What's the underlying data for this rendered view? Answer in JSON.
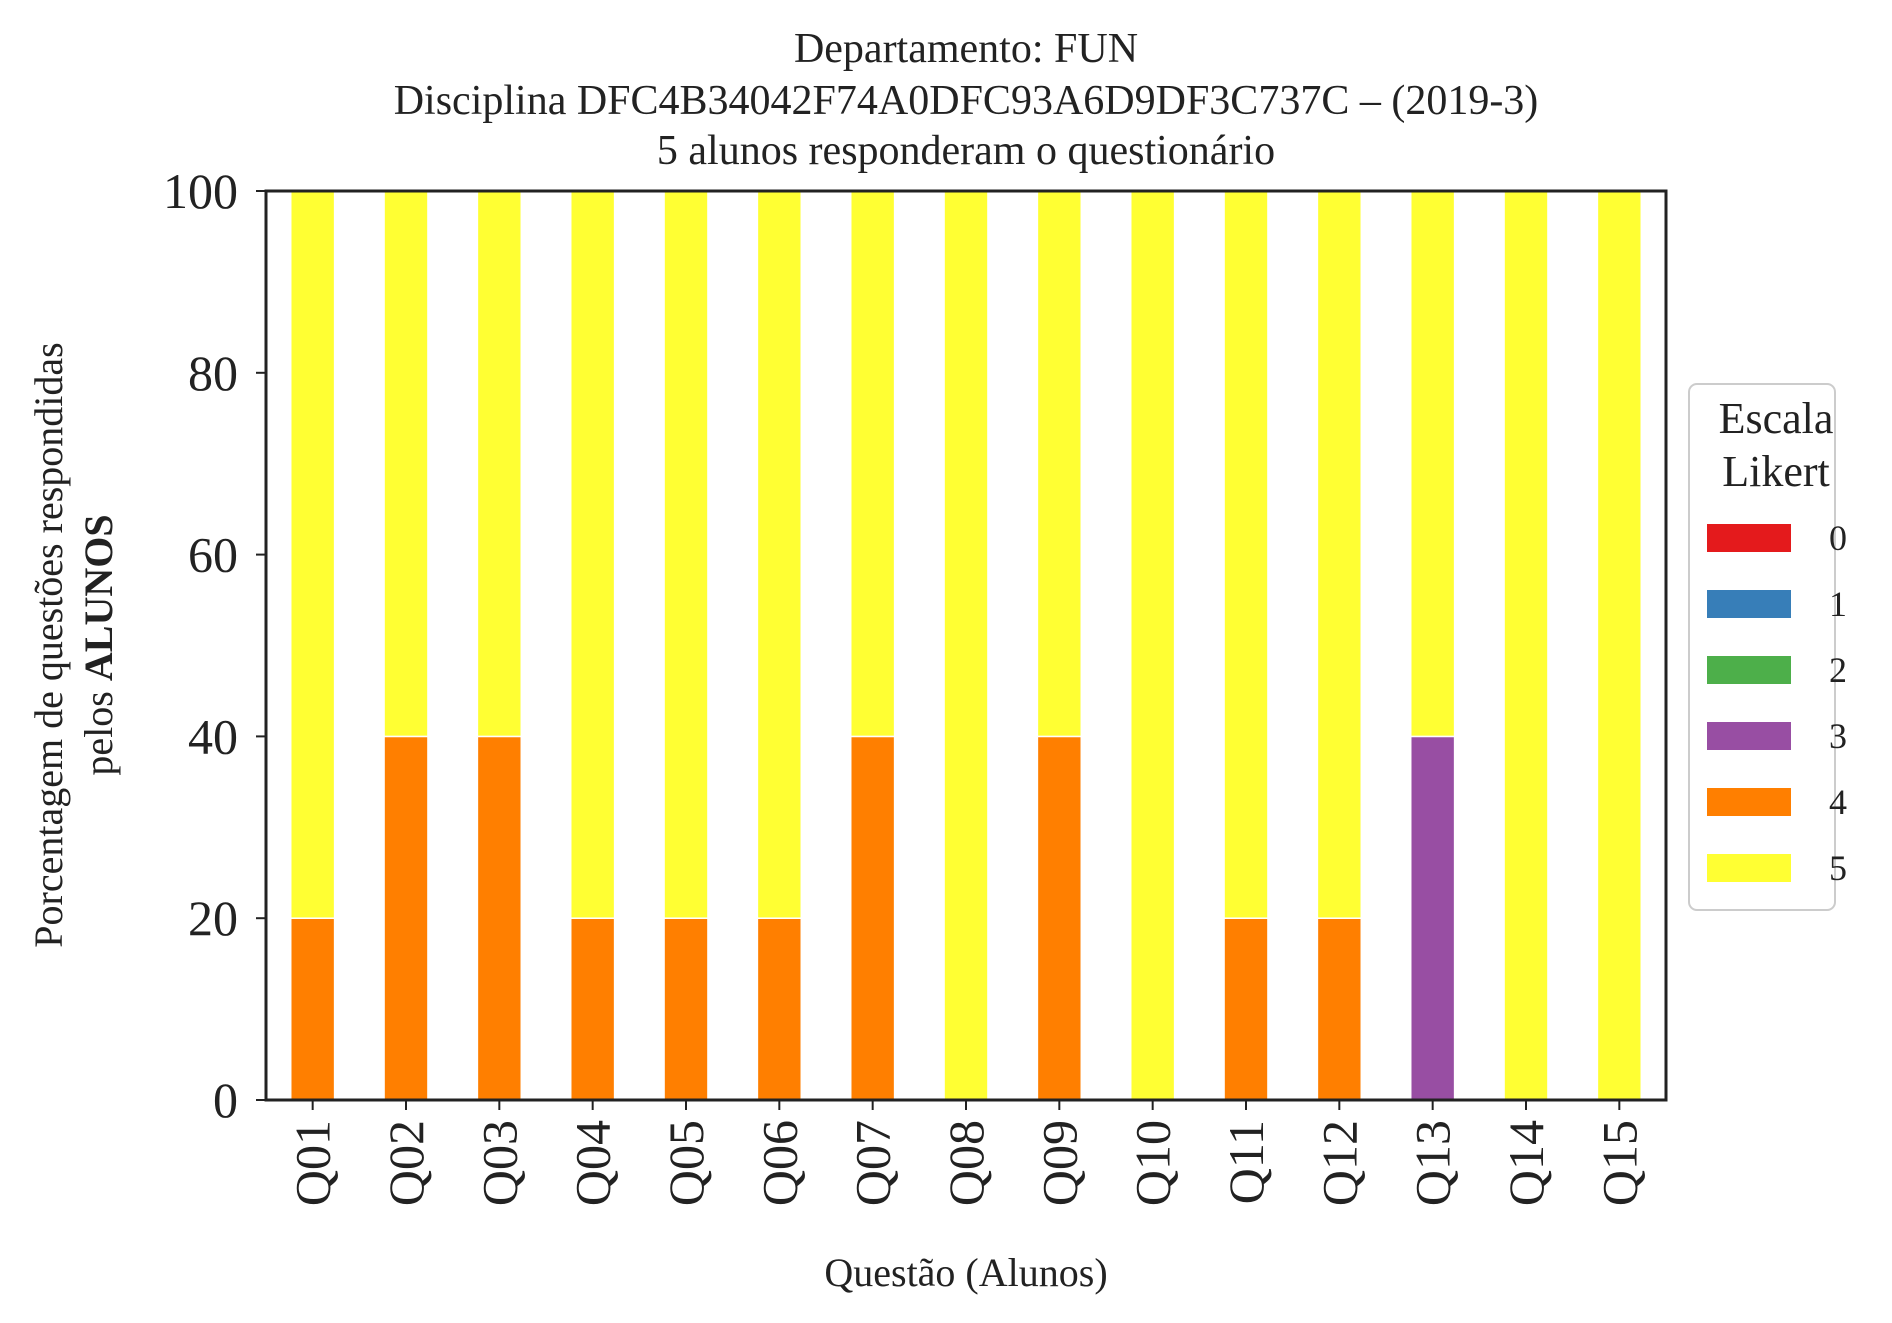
{
  "chart_data": {
    "type": "bar",
    "stacked": true,
    "title_lines": [
      "Departamento: FUN",
      "Disciplina DFC4B34042F74A0DFC93A6D9DF3C737C – (2019-3)",
      "5 alunos responderam o questionário"
    ],
    "xlabel": "Questão (Alunos)",
    "ylabel_line1": "Porcentagem de questões respondidas",
    "ylabel_line2_prefix": "pelos ",
    "ylabel_line2_bold": "ALUNOS",
    "ylim": [
      0,
      100
    ],
    "yticks": [
      0,
      20,
      40,
      60,
      80,
      100
    ],
    "categories": [
      "Q01",
      "Q02",
      "Q03",
      "Q04",
      "Q05",
      "Q06",
      "Q07",
      "Q08",
      "Q09",
      "Q10",
      "Q11",
      "Q12",
      "Q13",
      "Q14",
      "Q15"
    ],
    "legend": {
      "title_lines": [
        "Escala",
        "Likert"
      ],
      "placement": "right, outside plot"
    },
    "grid": false,
    "series": [
      {
        "name": "0",
        "color": "#e41a1c",
        "values": [
          0,
          0,
          0,
          0,
          0,
          0,
          0,
          0,
          0,
          0,
          0,
          0,
          0,
          0,
          0
        ]
      },
      {
        "name": "1",
        "color": "#377eb8",
        "values": [
          0,
          0,
          0,
          0,
          0,
          0,
          0,
          0,
          0,
          0,
          0,
          0,
          0,
          0,
          0
        ]
      },
      {
        "name": "2",
        "color": "#4daf4a",
        "values": [
          0,
          0,
          0,
          0,
          0,
          0,
          0,
          0,
          0,
          0,
          0,
          0,
          0,
          0,
          0
        ]
      },
      {
        "name": "3",
        "color": "#984ea3",
        "values": [
          0,
          0,
          0,
          0,
          0,
          0,
          0,
          0,
          0,
          0,
          0,
          0,
          40,
          0,
          0
        ]
      },
      {
        "name": "4",
        "color": "#ff7f00",
        "values": [
          20,
          40,
          40,
          20,
          20,
          20,
          40,
          0,
          40,
          0,
          20,
          20,
          0,
          0,
          0
        ]
      },
      {
        "name": "5",
        "color": "#ffff33",
        "values": [
          80,
          60,
          60,
          80,
          80,
          80,
          60,
          100,
          60,
          100,
          80,
          80,
          60,
          100,
          100
        ]
      }
    ]
  }
}
